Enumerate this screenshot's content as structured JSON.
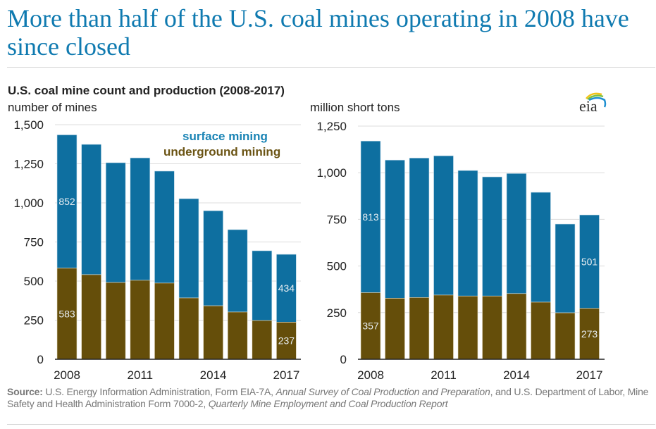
{
  "headline": "More than half of the U.S. coal mines operating in 2008 have since closed",
  "chart_title": "U.S. coal mine count and production (2008-2017)",
  "logo": "eia",
  "colors": {
    "surface": "#0e6fa0",
    "underground": "#654e0a",
    "headline": "#0f7ab0",
    "legend_surface": "#1a84b5",
    "legend_underground": "#6b5414"
  },
  "legend": {
    "surface": "surface mining",
    "underground": "underground mining"
  },
  "source": {
    "label": "Source:",
    "t1": " U.S. Energy Information Administration, Form EIA-7A, ",
    "i1": "Annual Survey of Coal Production and Preparation",
    "t2": ", and U.S. Department of Labor, Mine Safety and Health Administration Form 7000-2, ",
    "i2": "Quarterly Mine Employment and Coal Production Report"
  },
  "chart_data": [
    {
      "type": "bar",
      "stacked": true,
      "title": "U.S. coal mine count (2008-2017)",
      "ylabel": "number of mines",
      "categories": [
        "2008",
        "2009",
        "2010",
        "2011",
        "2012",
        "2013",
        "2014",
        "2015",
        "2016",
        "2017"
      ],
      "xtick_labels": [
        "2008",
        "",
        "",
        "2011",
        "",
        "",
        "2014",
        "",
        "",
        "2017"
      ],
      "ylim": [
        0,
        1500
      ],
      "yticks": [
        0,
        250,
        500,
        750,
        1000,
        1250,
        1500
      ],
      "ytick_labels": [
        "0",
        "250",
        "500",
        "750",
        "1,000",
        "1,250",
        "1,500"
      ],
      "grid": true,
      "legend_position": "top-right",
      "series": [
        {
          "name": "underground mining",
          "values": [
            583,
            541,
            491,
            505,
            487,
            392,
            342,
            302,
            248,
            237
          ]
        },
        {
          "name": "surface mining",
          "values": [
            852,
            833,
            766,
            783,
            716,
            635,
            608,
            527,
            446,
            434
          ]
        }
      ],
      "data_labels": [
        {
          "series": "surface mining",
          "category": "2008",
          "text": "852"
        },
        {
          "series": "underground mining",
          "category": "2008",
          "text": "583"
        },
        {
          "series": "surface mining",
          "category": "2017",
          "text": "434"
        },
        {
          "series": "underground mining",
          "category": "2017",
          "text": "237"
        }
      ]
    },
    {
      "type": "bar",
      "stacked": true,
      "title": "U.S. coal production (2008-2017)",
      "ylabel": "million short tons",
      "categories": [
        "2008",
        "2009",
        "2010",
        "2011",
        "2012",
        "2013",
        "2014",
        "2015",
        "2016",
        "2017"
      ],
      "xtick_labels": [
        "2008",
        "",
        "",
        "2011",
        "",
        "",
        "2014",
        "",
        "",
        "2017"
      ],
      "ylim": [
        0,
        1250
      ],
      "yticks": [
        0,
        250,
        500,
        750,
        1000,
        1250
      ],
      "ytick_labels": [
        "0",
        "250",
        "500",
        "750",
        "1,000",
        "1,250"
      ],
      "grid": true,
      "series": [
        {
          "name": "underground mining",
          "values": [
            357,
            327,
            331,
            344,
            339,
            339,
            352,
            306,
            249,
            273
          ]
        },
        {
          "name": "surface mining",
          "values": [
            813,
            741,
            748,
            747,
            673,
            639,
            644,
            589,
            476,
            501
          ]
        }
      ],
      "data_labels": [
        {
          "series": "surface mining",
          "category": "2008",
          "text": "813"
        },
        {
          "series": "underground mining",
          "category": "2008",
          "text": "357"
        },
        {
          "series": "surface mining",
          "category": "2017",
          "text": "501"
        },
        {
          "series": "underground mining",
          "category": "2017",
          "text": "273"
        }
      ]
    }
  ]
}
